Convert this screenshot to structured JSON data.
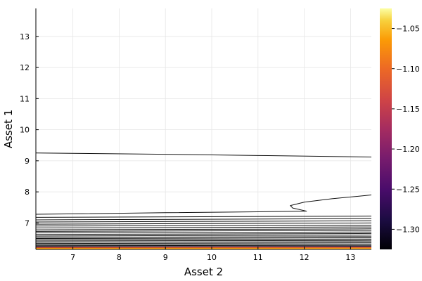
{
  "chart_data": {
    "type": "contour",
    "title": "",
    "xlabel": "Asset 2",
    "ylabel": "Asset 1",
    "xlim": [
      6.2,
      13.45
    ],
    "ylim": [
      6.15,
      13.9
    ],
    "x_ticks": [
      "7",
      "8",
      "9",
      "10",
      "11",
      "12",
      "13"
    ],
    "y_ticks": [
      "7",
      "8",
      "9",
      "10",
      "11",
      "12",
      "13"
    ],
    "grid": true,
    "colorbar": {
      "colormap": "inferno",
      "range": [
        -1.325,
        -1.025
      ],
      "tick_values": [
        -1.3,
        -1.25,
        -1.2,
        -1.15,
        -1.1,
        -1.05
      ],
      "tick_labels": [
        "−1.30",
        "−1.25",
        "−1.20",
        "−1.15",
        "−1.10",
        "−1.05"
      ]
    },
    "contours": [
      {
        "points": [
          [
            6.2,
            9.25
          ],
          [
            9.0,
            9.21
          ],
          [
            11.0,
            9.17
          ],
          [
            13.45,
            9.12
          ]
        ]
      },
      {
        "points": [
          [
            13.45,
            7.9
          ],
          [
            12.6,
            7.78
          ],
          [
            12.0,
            7.67
          ],
          [
            11.7,
            7.56
          ],
          [
            11.75,
            7.48
          ],
          [
            12.05,
            7.38
          ],
          [
            11.0,
            7.36
          ],
          [
            9.0,
            7.33
          ],
          [
            6.2,
            7.28
          ]
        ]
      },
      {
        "points": [
          [
            6.2,
            7.18
          ],
          [
            13.45,
            7.22
          ]
        ]
      },
      {
        "points": [
          [
            6.2,
            7.1
          ],
          [
            13.45,
            7.14
          ]
        ]
      },
      {
        "points": [
          [
            6.2,
            7.03
          ],
          [
            13.45,
            7.07
          ]
        ]
      },
      {
        "points": [
          [
            6.2,
            6.96
          ],
          [
            13.45,
            7.0
          ]
        ]
      },
      {
        "points": [
          [
            6.2,
            6.9
          ],
          [
            13.45,
            6.93
          ]
        ]
      },
      {
        "points": [
          [
            6.2,
            6.84
          ],
          [
            13.45,
            6.87
          ]
        ]
      },
      {
        "points": [
          [
            6.2,
            6.78
          ],
          [
            13.45,
            6.81
          ]
        ]
      },
      {
        "points": [
          [
            6.2,
            6.73
          ],
          [
            13.45,
            6.76
          ]
        ]
      },
      {
        "points": [
          [
            6.2,
            6.68
          ],
          [
            13.45,
            6.71
          ]
        ]
      },
      {
        "points": [
          [
            6.2,
            6.63
          ],
          [
            13.45,
            6.66
          ]
        ]
      },
      {
        "points": [
          [
            6.2,
            6.58
          ],
          [
            13.45,
            6.61
          ]
        ]
      },
      {
        "points": [
          [
            6.2,
            6.54
          ],
          [
            13.45,
            6.56
          ]
        ]
      },
      {
        "points": [
          [
            6.2,
            6.5
          ],
          [
            13.45,
            6.52
          ]
        ]
      },
      {
        "points": [
          [
            6.2,
            6.46
          ],
          [
            13.45,
            6.48
          ]
        ]
      },
      {
        "points": [
          [
            6.2,
            6.42
          ],
          [
            13.45,
            6.44
          ]
        ]
      },
      {
        "points": [
          [
            6.2,
            6.38
          ],
          [
            13.45,
            6.4
          ]
        ]
      },
      {
        "points": [
          [
            6.2,
            6.34
          ],
          [
            13.45,
            6.36
          ]
        ]
      },
      {
        "points": [
          [
            6.2,
            6.3
          ],
          [
            13.45,
            6.32
          ]
        ]
      },
      {
        "points": [
          [
            6.2,
            6.27
          ],
          [
            13.45,
            6.28
          ]
        ]
      },
      {
        "points": [
          [
            6.2,
            6.24
          ],
          [
            13.45,
            6.25
          ]
        ]
      },
      {
        "points": [
          [
            6.2,
            6.21
          ],
          [
            13.45,
            6.22
          ]
        ],
        "color": "#8a2266"
      },
      {
        "points": [
          [
            6.2,
            6.195
          ],
          [
            13.45,
            6.2
          ]
        ],
        "color": "#e64a22"
      },
      {
        "points": [
          [
            6.2,
            6.18
          ],
          [
            13.45,
            6.185
          ]
        ],
        "color": "#fca50a"
      }
    ]
  }
}
